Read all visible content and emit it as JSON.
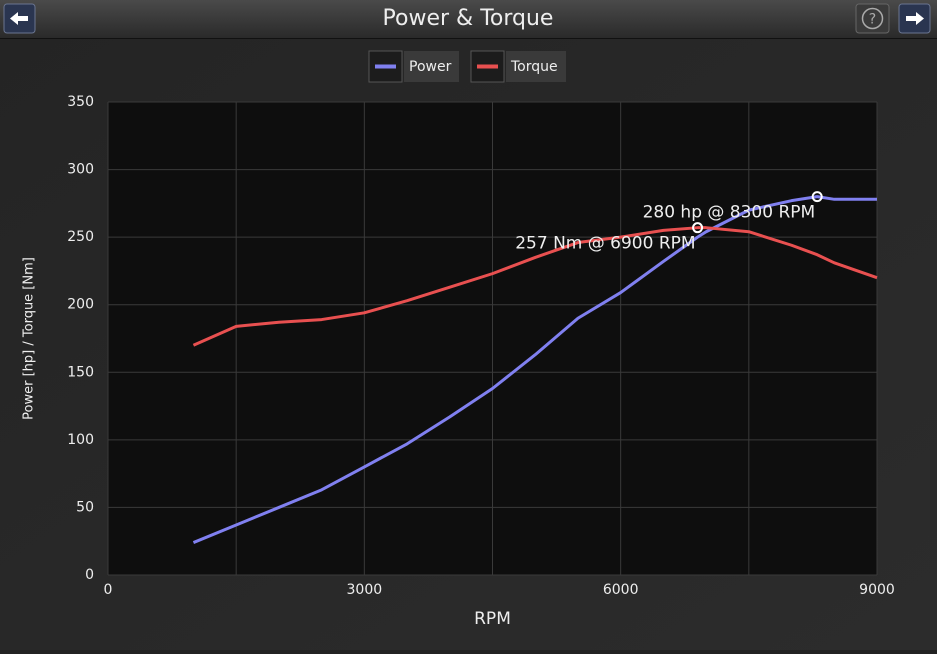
{
  "header": {
    "title": "Power & Torque"
  },
  "chart_data": {
    "type": "line",
    "x_label": "RPM",
    "y_label": "Power [hp] / Torque [Nm]",
    "x": [
      1000,
      1500,
      2000,
      2500,
      3000,
      3500,
      4000,
      4500,
      5000,
      5500,
      6000,
      6500,
      6900,
      7000,
      7500,
      8000,
      8300,
      8500,
      9000
    ],
    "series": [
      {
        "name": "Power",
        "color": "#8080f0",
        "values": [
          24,
          37,
          50,
          63,
          80,
          97,
          117,
          138,
          163,
          190,
          209,
          232,
          250,
          254,
          270,
          277,
          280,
          278,
          278
        ]
      },
      {
        "name": "Torque",
        "color": "#e85050",
        "values": [
          170,
          184,
          187,
          189,
          194,
          203,
          213,
          223,
          235,
          246,
          250,
          255,
          257,
          257,
          254,
          244,
          237,
          231,
          220
        ]
      }
    ],
    "annotations": [
      {
        "text": "280 hp @ 8300 RPM",
        "x": 8300,
        "y": 280
      },
      {
        "text": "257 Nm @ 6900 RPM",
        "x": 6900,
        "y": 257
      }
    ],
    "xlim": [
      0,
      9000
    ],
    "xticks": [
      0,
      3000,
      6000,
      9000
    ],
    "xminorticks": [
      1500,
      4500,
      7500
    ],
    "ylim": [
      0,
      350
    ],
    "yticks": [
      0,
      50,
      100,
      150,
      200,
      250,
      300,
      350
    ],
    "grid": true,
    "legend": "top"
  }
}
